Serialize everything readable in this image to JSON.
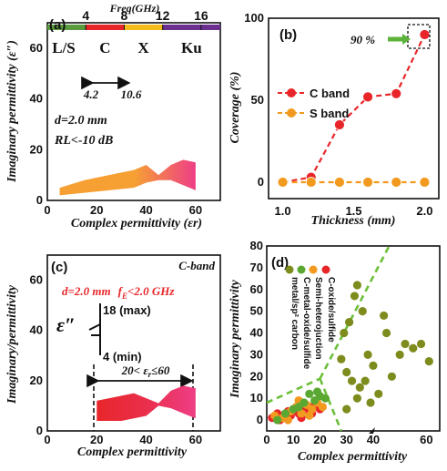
{
  "colors": {
    "c_band": "#e8262a",
    "s_band": "#f29a1f",
    "green": "#5aa832",
    "olive": "#7e8c1e",
    "dash_green": "#6cbf3a",
    "arrow_green": "#5bb33a",
    "bar_ls": "#5a9b3f",
    "bar_c": "#e8262a",
    "bar_x": "#f5bd1c",
    "bar_ku": "#6a2f8f",
    "fill_orange": "#f6a033",
    "fill_pink": "#ee3e86",
    "annotation_red": "#e8262a"
  },
  "chart_data": [
    {
      "panel": "(a)",
      "type": "area",
      "xlabel": "Complex permittivity (εr)",
      "ylabel": "Imaginary permittivity (ε″)",
      "xlim": [
        0,
        70
      ],
      "ylim": [
        0,
        70
      ],
      "xticks": [
        "0",
        "20",
        "40",
        "60"
      ],
      "yticks": [
        "0",
        "20",
        "40",
        "60"
      ],
      "freq_label": "Freq(GHz)",
      "freq_ticks": [
        "4",
        "8",
        "12",
        "16"
      ],
      "bands": [
        {
          "name": "L/S",
          "from": 0,
          "to": 4
        },
        {
          "name": "C",
          "from": 4,
          "to": 8
        },
        {
          "name": "X",
          "from": 8,
          "to": 12
        },
        {
          "name": "Ku",
          "from": 12,
          "to": 18
        }
      ],
      "range_low": "4.2",
      "range_high": "10.6",
      "notes": [
        "d=2.0 mm",
        "RL<-10 dB"
      ],
      "region": {
        "upper": [
          [
            5,
            5
          ],
          [
            15,
            8
          ],
          [
            25,
            10
          ],
          [
            35,
            12
          ],
          [
            40,
            14
          ],
          [
            45,
            10
          ],
          [
            50,
            14
          ],
          [
            55,
            16
          ],
          [
            60,
            15
          ]
        ],
        "lower": [
          [
            60,
            4
          ],
          [
            55,
            6
          ],
          [
            50,
            8
          ],
          [
            45,
            8
          ],
          [
            40,
            7
          ],
          [
            35,
            5
          ],
          [
            25,
            4
          ],
          [
            15,
            3
          ],
          [
            5,
            2
          ]
        ]
      }
    },
    {
      "panel": "(b)",
      "type": "line",
      "xlabel": "Thickness (mm)",
      "ylabel": "Coverage (%)",
      "xlim": [
        0.9,
        2.1
      ],
      "ylim": [
        -10,
        100
      ],
      "xticks": [
        "1.0",
        "1.5",
        "2.0"
      ],
      "yticks": [
        "0",
        "50",
        "100"
      ],
      "annotation": "90 %",
      "series": [
        {
          "name": "C band",
          "x": [
            1.2,
            1.4,
            1.6,
            1.8,
            2.0
          ],
          "y": [
            3,
            35,
            52,
            54,
            90
          ]
        },
        {
          "name": "S band",
          "x": [
            1.0,
            1.2,
            1.4,
            1.6,
            1.8,
            2.0
          ],
          "y": [
            0,
            0,
            0,
            0,
            0,
            0
          ]
        }
      ]
    },
    {
      "panel": "(c)",
      "type": "area",
      "title": "C-band",
      "xlabel": "Complex permittivity",
      "ylabel": "Imaginary/permittivity",
      "xlim": [
        0,
        70
      ],
      "ylim": [
        0,
        70
      ],
      "xticks": [
        "0",
        "20",
        "40",
        "60"
      ],
      "yticks": [
        "0",
        "20",
        "40",
        "60"
      ],
      "condition_left": "d=2.0 mm",
      "condition_right": "f",
      "condition_sub": "E",
      "condition_tail": "<2.0 GHz",
      "epsilon_symbol": "ε″",
      "max_label": "18 (max)",
      "min_label": "4 (min)",
      "range_label": "20< ε",
      "range_sub": "r",
      "range_tail": "≤60",
      "region": {
        "upper": [
          [
            20,
            12
          ],
          [
            30,
            14
          ],
          [
            35,
            15
          ],
          [
            40,
            13
          ],
          [
            45,
            11
          ],
          [
            50,
            16
          ],
          [
            55,
            18
          ],
          [
            60,
            17
          ]
        ],
        "lower": [
          [
            60,
            5
          ],
          [
            55,
            7
          ],
          [
            50,
            9
          ],
          [
            45,
            10
          ],
          [
            40,
            6
          ],
          [
            35,
            5
          ],
          [
            30,
            4
          ],
          [
            20,
            4
          ]
        ]
      }
    },
    {
      "panel": "(d)",
      "type": "scatter",
      "xlabel": "Complex permittivity",
      "ylabel": "Imaginary permittivity",
      "xlim": [
        0,
        65
      ],
      "ylim": [
        -5,
        80
      ],
      "xticks": [
        "0",
        "10",
        "20",
        "30",
        "40",
        "60"
      ],
      "yticks": [
        "0",
        "10",
        "20",
        "30",
        "40",
        "50",
        "60",
        "70",
        "80"
      ],
      "legend_labels": [
        "C-oxide/sulfide",
        "Semi-heterojuction",
        "C-metal-oxide/sulfide",
        "metal/sp² carbon"
      ],
      "series": [
        {
          "name": "C-oxide/sulfide",
          "x": [
            2,
            4,
            6,
            8,
            10,
            12,
            14,
            16,
            18,
            20,
            5,
            9,
            13,
            17
          ],
          "y": [
            1,
            3,
            2,
            4,
            5,
            3,
            6,
            4,
            7,
            5,
            0,
            2,
            1,
            3
          ]
        },
        {
          "name": "Semi-heterojuction",
          "x": [
            3,
            6,
            9,
            11,
            13,
            15,
            17,
            19,
            21,
            8,
            12,
            16
          ],
          "y": [
            2,
            1,
            4,
            6,
            3,
            7,
            5,
            8,
            6,
            0,
            9,
            2
          ]
        },
        {
          "name": "C-metal-oxide/sulfide",
          "x": [
            4,
            7,
            10,
            14,
            18,
            20,
            22,
            12,
            16,
            19
          ],
          "y": [
            0,
            3,
            5,
            8,
            9,
            11,
            10,
            6,
            12,
            13
          ]
        },
        {
          "name": "metal/sp² carbon",
          "x": [
            28,
            29,
            30,
            31,
            32,
            33,
            34,
            35,
            36,
            38,
            39,
            40,
            42,
            45,
            47,
            50,
            52,
            55,
            58,
            61,
            30,
            34,
            37,
            44
          ],
          "y": [
            28,
            40,
            22,
            45,
            18,
            57,
            62,
            15,
            50,
            30,
            8,
            25,
            12,
            40,
            20,
            30,
            35,
            33,
            35,
            27,
            5,
            10,
            18,
            48
          ]
        }
      ]
    }
  ]
}
